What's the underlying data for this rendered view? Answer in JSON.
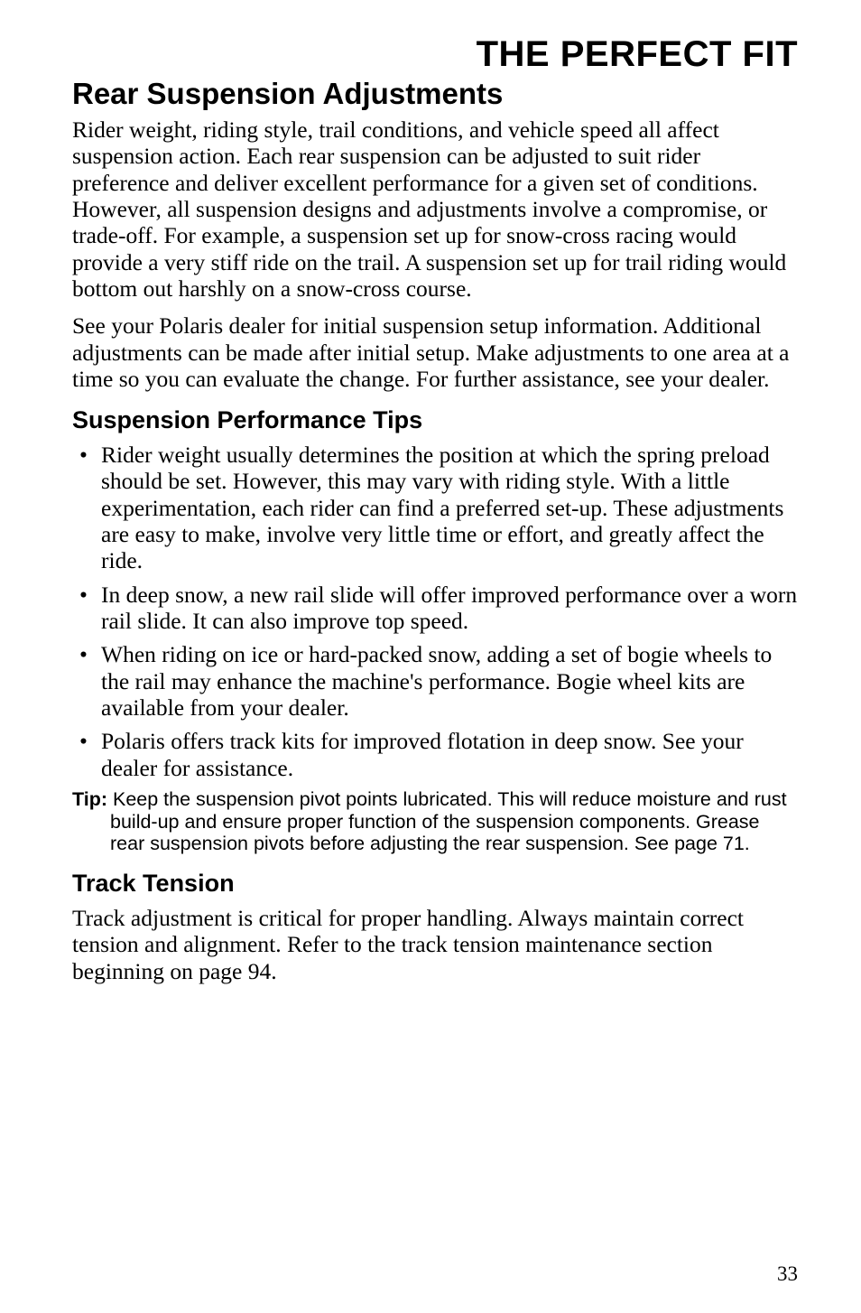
{
  "header": {
    "main_title": "THE PERFECT FIT",
    "section_title": "Rear Suspension Adjustments"
  },
  "intro": {
    "p1": "Rider weight, riding style, trail conditions, and vehicle speed all affect suspension action. Each rear suspension can be adjusted to suit rider preference and deliver excellent performance for a given set of conditions. However, all suspension designs and adjustments involve a compromise, or trade-off. For example, a suspension set up for snow-cross racing would provide a very stiff ride on the trail. A suspension set up for trail riding would bottom out harshly on a snow-cross course.",
    "p2": "See your Polaris dealer for initial suspension setup information. Additional adjustments can be made after initial setup. Make adjustments to one area at a time so you can evaluate the change. For further assistance, see your dealer."
  },
  "tips_section": {
    "heading": "Suspension Performance Tips",
    "items": [
      "Rider weight usually determines the position at which the spring preload should be set. However, this may vary with riding style. With a little experimentation, each rider can find a preferred set-up. These adjustments are easy to make, involve very little time or effort, and greatly affect the ride.",
      "In deep snow, a new rail slide will offer improved performance over a worn rail slide. It can also improve top speed.",
      "When riding on ice or hard-packed snow, adding a set of bogie wheels to the rail may enhance the machine's performance. Bogie wheel kits are available from your dealer.",
      "Polaris offers track kits for improved flotation in deep snow. See your dealer for assistance."
    ],
    "tip_label": "Tip:",
    "tip_text": "Keep the suspension pivot points lubricated. This will reduce moisture and rust build-up and ensure proper function of the suspension components. Grease rear suspension pivots before adjusting the rear suspension. See page 71."
  },
  "track_section": {
    "heading": "Track Tension",
    "body": "Track adjustment is critical for proper handling. Always maintain correct tension and alignment. Refer to the track tension maintenance section beginning on page 94."
  },
  "page_number": "33"
}
